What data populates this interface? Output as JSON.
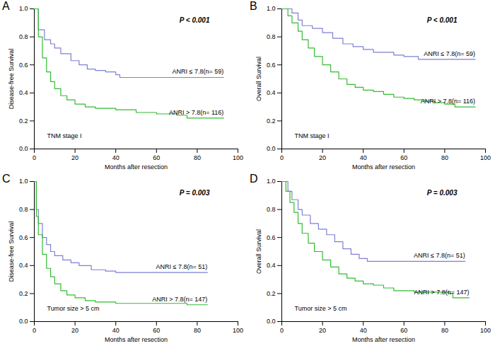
{
  "chart_data": [
    {
      "type": "line",
      "panel": "A",
      "p_value": "P < 0.001",
      "subgroup": "TNM stage I",
      "x_label": "Months after resection",
      "y_label": "Disease-free Survival",
      "xlim": [
        0,
        100
      ],
      "xticks": [
        0,
        20,
        40,
        60,
        80,
        100
      ],
      "ylim": [
        0,
        1
      ],
      "yticks": [
        {
          "value": 0,
          "label": "0.0"
        },
        {
          "value": 0.2,
          "label": "0.2"
        },
        {
          "value": 0.4,
          "label": "0.4"
        },
        {
          "value": 0.6,
          "label": "0.6"
        },
        {
          "value": 0.8,
          "label": "0.8"
        },
        {
          "value": 1,
          "label": "1.0"
        }
      ],
      "grid": false,
      "line_style": "step",
      "series": [
        {
          "name": "ANRI ≤ 7.8(n= 59)",
          "color": "#7f7fd5",
          "x": [
            0,
            2,
            5,
            8,
            10,
            13,
            18,
            22,
            26,
            30,
            35,
            40,
            42,
            93
          ],
          "values": [
            1.0,
            0.85,
            0.78,
            0.75,
            0.72,
            0.68,
            0.63,
            0.6,
            0.57,
            0.56,
            0.55,
            0.53,
            0.51,
            0.51
          ]
        },
        {
          "name": "ANRI > 7.8(n= 116)",
          "color": "#33bb33",
          "x": [
            0,
            2,
            4,
            6,
            8,
            10,
            13,
            16,
            20,
            25,
            30,
            40,
            50,
            60,
            70,
            75,
            93
          ],
          "values": [
            1.0,
            0.8,
            0.65,
            0.55,
            0.48,
            0.43,
            0.38,
            0.35,
            0.32,
            0.3,
            0.29,
            0.28,
            0.26,
            0.25,
            0.24,
            0.22,
            0.22
          ]
        }
      ]
    },
    {
      "type": "line",
      "panel": "B",
      "p_value": "P < 0.001",
      "subgroup": "TNM stage I",
      "x_label": "Months after resection",
      "y_label": "Overall Survival",
      "xlim": [
        0,
        100
      ],
      "xticks": [
        0,
        20,
        40,
        60,
        80,
        100
      ],
      "ylim": [
        0,
        1
      ],
      "yticks": [
        {
          "value": 0,
          "label": "0.0"
        },
        {
          "value": 0.2,
          "label": "0.2"
        },
        {
          "value": 0.4,
          "label": "0.4"
        },
        {
          "value": 0.6,
          "label": "0.6"
        },
        {
          "value": 0.8,
          "label": "0.8"
        },
        {
          "value": 1,
          "label": "1.0"
        }
      ],
      "grid": false,
      "line_style": "step",
      "series": [
        {
          "name": "ANRI ≤ 7.8(n= 59)",
          "color": "#7f7fd5",
          "x": [
            0,
            5,
            8,
            10,
            15,
            20,
            25,
            30,
            35,
            40,
            45,
            55,
            60,
            67,
            95
          ],
          "values": [
            1.0,
            0.97,
            0.92,
            0.88,
            0.86,
            0.83,
            0.79,
            0.75,
            0.73,
            0.71,
            0.69,
            0.67,
            0.66,
            0.64,
            0.64
          ]
        },
        {
          "name": "ANRI > 7.8(n= 116)",
          "color": "#33bb33",
          "x": [
            0,
            3,
            5,
            8,
            10,
            13,
            16,
            20,
            24,
            28,
            32,
            36,
            40,
            45,
            50,
            55,
            60,
            65,
            70,
            75,
            80,
            85,
            95
          ],
          "values": [
            1.0,
            0.95,
            0.9,
            0.84,
            0.78,
            0.72,
            0.66,
            0.6,
            0.55,
            0.5,
            0.46,
            0.44,
            0.42,
            0.41,
            0.39,
            0.37,
            0.36,
            0.35,
            0.34,
            0.33,
            0.32,
            0.3,
            0.3
          ]
        }
      ]
    },
    {
      "type": "line",
      "panel": "C",
      "p_value": "P = 0.003",
      "subgroup": "Tumor size > 5 cm",
      "x_label": "Months after resection",
      "y_label": "Disease-free Survival",
      "xlim": [
        0,
        100
      ],
      "xticks": [
        0,
        20,
        40,
        60,
        80,
        100
      ],
      "ylim": [
        0,
        1
      ],
      "yticks": [
        {
          "value": 0,
          "label": "0.0"
        },
        {
          "value": 0.2,
          "label": "0.2"
        },
        {
          "value": 0.4,
          "label": "0.4"
        },
        {
          "value": 0.6,
          "label": "0.6"
        },
        {
          "value": 0.8,
          "label": "0.8"
        },
        {
          "value": 1,
          "label": "1.0"
        }
      ],
      "grid": false,
      "line_style": "step",
      "series": [
        {
          "name": "ANRI ≤ 7.8(n= 51)",
          "color": "#7f7fd5",
          "x": [
            0,
            1,
            2,
            4,
            6,
            8,
            10,
            14,
            18,
            22,
            28,
            35,
            40,
            85
          ],
          "values": [
            1.0,
            0.8,
            0.7,
            0.6,
            0.55,
            0.5,
            0.47,
            0.44,
            0.42,
            0.4,
            0.37,
            0.36,
            0.35,
            0.35
          ]
        },
        {
          "name": "ANRI > 7.8(n= 147)",
          "color": "#33bb33",
          "x": [
            0,
            1,
            2,
            4,
            6,
            8,
            10,
            13,
            16,
            20,
            25,
            30,
            40,
            60,
            75,
            85
          ],
          "values": [
            1.0,
            0.75,
            0.62,
            0.48,
            0.38,
            0.32,
            0.27,
            0.22,
            0.19,
            0.17,
            0.15,
            0.14,
            0.13,
            0.13,
            0.12,
            0.12
          ]
        }
      ]
    },
    {
      "type": "line",
      "panel": "D",
      "p_value": "P = 0.003",
      "subgroup": "Tumor size > 5 cm",
      "x_label": "Months after resection",
      "y_label": "Overall Survival",
      "xlim": [
        0,
        100
      ],
      "xticks": [
        0,
        20,
        40,
        60,
        80,
        100
      ],
      "ylim": [
        0,
        1
      ],
      "yticks": [
        {
          "value": 0,
          "label": "0.0"
        },
        {
          "value": 0.2,
          "label": "0.2"
        },
        {
          "value": 0.4,
          "label": "0.4"
        },
        {
          "value": 0.6,
          "label": "0.6"
        },
        {
          "value": 0.8,
          "label": "0.8"
        },
        {
          "value": 1,
          "label": "1.0"
        }
      ],
      "grid": false,
      "line_style": "step",
      "series": [
        {
          "name": "ANRI ≤ 7.8(n= 51)",
          "color": "#7f7fd5",
          "x": [
            0,
            3,
            5,
            8,
            10,
            14,
            18,
            22,
            26,
            30,
            34,
            38,
            42,
            90
          ],
          "values": [
            1.0,
            0.93,
            0.87,
            0.8,
            0.76,
            0.7,
            0.66,
            0.62,
            0.57,
            0.52,
            0.48,
            0.45,
            0.43,
            0.43
          ]
        },
        {
          "name": "ANRI > 7.8(n= 147)",
          "color": "#33bb33",
          "x": [
            0,
            2,
            4,
            6,
            8,
            10,
            13,
            16,
            20,
            24,
            28,
            32,
            36,
            40,
            45,
            50,
            55,
            65,
            75,
            82,
            84,
            92
          ],
          "values": [
            1.0,
            0.93,
            0.85,
            0.78,
            0.7,
            0.63,
            0.56,
            0.5,
            0.44,
            0.39,
            0.34,
            0.31,
            0.29,
            0.27,
            0.26,
            0.24,
            0.22,
            0.21,
            0.21,
            0.2,
            0.17,
            0.17
          ]
        }
      ]
    }
  ]
}
